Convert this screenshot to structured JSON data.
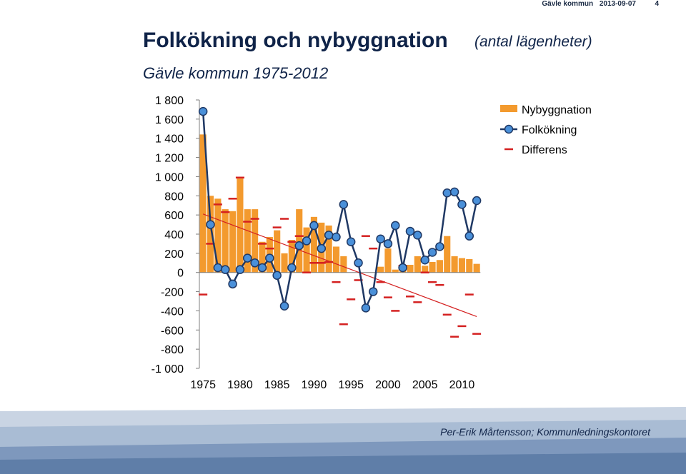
{
  "header": {
    "org": "Gävle kommun",
    "date": "2013-09-07",
    "page_number": "4"
  },
  "title": "Folkökning och nybyggnation",
  "title_unit": "(antal lägenheter)",
  "subtitle": "Gävle kommun 1975-2012",
  "footer": {
    "author": "Per-Erik Mårtensson; Kommunledningskontoret"
  },
  "colors": {
    "bars": "#f39a2e",
    "line": "#1f3864",
    "marker_fill": "#4a90d9",
    "differens": "#d42020",
    "trend": "#d42020",
    "title": "#0f2348"
  },
  "chart_data": {
    "type": "bar",
    "ylim": [
      -1000,
      1800
    ],
    "yticks": [
      "1 800",
      "1 600",
      "1 400",
      "1 200",
      "1 000",
      "800",
      "600",
      "400",
      "200",
      "0",
      "-200",
      "-400",
      "-600",
      "-800",
      "-1 000"
    ],
    "ytick_values": [
      1800,
      1600,
      1400,
      1200,
      1000,
      800,
      600,
      400,
      200,
      0,
      -200,
      -400,
      -600,
      -800,
      -1000
    ],
    "xticks": [
      "1975",
      "1980",
      "1985",
      "1990",
      "1995",
      "2000",
      "2005",
      "2010"
    ],
    "xtick_values": [
      1975,
      1980,
      1985,
      1990,
      1995,
      2000,
      2005,
      2010
    ],
    "x": [
      1975,
      1976,
      1977,
      1978,
      1979,
      1980,
      1981,
      1982,
      1983,
      1984,
      1985,
      1986,
      1987,
      1988,
      1989,
      1990,
      1991,
      1992,
      1993,
      1994,
      1995,
      1996,
      1997,
      1998,
      1999,
      2000,
      2001,
      2002,
      2003,
      2004,
      2005,
      2006,
      2007,
      2008,
      2009,
      2010,
      2011,
      2012
    ],
    "series": [
      {
        "name": "Nybyggnation",
        "type": "bar",
        "values": [
          1440,
          800,
          770,
          660,
          640,
          980,
          660,
          660,
          320,
          370,
          440,
          200,
          340,
          660,
          470,
          580,
          520,
          490,
          270,
          170,
          0,
          0,
          0,
          0,
          60,
          250,
          30,
          80,
          80,
          170,
          70,
          110,
          130,
          380,
          170,
          150,
          140,
          90
        ]
      },
      {
        "name": "Folkökning",
        "type": "line",
        "values": [
          1680,
          500,
          50,
          30,
          -120,
          30,
          150,
          100,
          50,
          150,
          -30,
          -350,
          50,
          280,
          330,
          490,
          250,
          390,
          370,
          710,
          320,
          100,
          -370,
          -200,
          350,
          300,
          490,
          50,
          430,
          390,
          130,
          210,
          270,
          830,
          840,
          710,
          380,
          750
        ]
      },
      {
        "name": "Differens",
        "type": "marker",
        "values": [
          -230,
          300,
          710,
          630,
          770,
          990,
          530,
          560,
          300,
          250,
          470,
          560,
          320,
          380,
          0,
          100,
          100,
          110,
          -100,
          -540,
          -280,
          -80,
          380,
          250,
          -100,
          -260,
          -400,
          70,
          -250,
          -310,
          0,
          -100,
          -130,
          -440,
          -670,
          -560,
          -230,
          -640
        ]
      }
    ],
    "trendline": {
      "series": "Differens",
      "from": [
        1975,
        610
      ],
      "to": [
        2012,
        -460
      ]
    },
    "legend_position": "right",
    "grid": false
  }
}
